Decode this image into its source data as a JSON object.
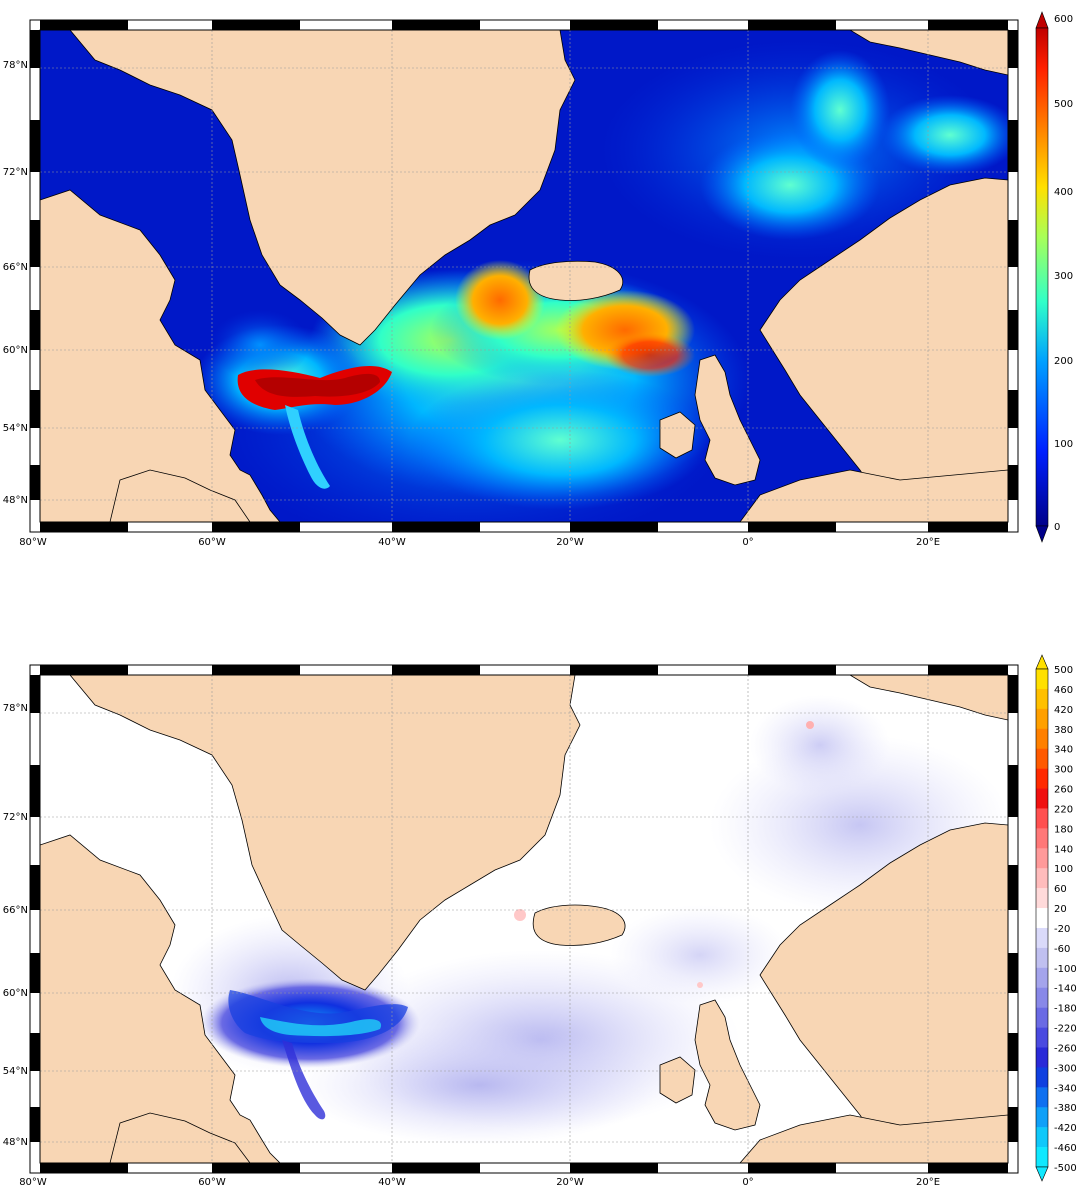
{
  "colors": {
    "land": "#f8d6b4",
    "coast": "#000000",
    "frame_dark": "#000000",
    "frame_light": "#ffffff",
    "grid": "#9a9a9a",
    "ocean_top_base": "#0016c8",
    "ocean_bottom_base": "#ffffff"
  },
  "maps": [
    {
      "id": "top",
      "lat_labels": [
        "78°N",
        "72°N",
        "66°N",
        "60°N",
        "54°N",
        "48°N"
      ],
      "lon_labels": [
        "80°W",
        "60°W",
        "40°W",
        "20°W",
        "0°",
        "20°E"
      ],
      "colorbar": {
        "ticks": [
          "600",
          "500",
          "400",
          "300",
          "200",
          "100",
          "0"
        ],
        "colors": [
          "#00008a",
          "#0000c8",
          "#0020ff",
          "#0050ff",
          "#0080ff",
          "#00b0ff",
          "#00e0f0",
          "#30ffc8",
          "#70ff90",
          "#a8ff58",
          "#e0ff20",
          "#ffe000",
          "#ffb000",
          "#ff7800",
          "#ff4000",
          "#e00000",
          "#b00000"
        ]
      }
    },
    {
      "id": "bottom",
      "lat_labels": [
        "78°N",
        "72°N",
        "66°N",
        "60°N",
        "54°N",
        "48°N"
      ],
      "lon_labels": [
        "80°W",
        "60°W",
        "40°W",
        "20°W",
        "0°",
        "20°E"
      ],
      "colorbar": {
        "ticks": [
          "500",
          "460",
          "420",
          "380",
          "340",
          "300",
          "260",
          "220",
          "180",
          "140",
          "100",
          "60",
          "20",
          "-20",
          "-60",
          "-100",
          "-140",
          "-180",
          "-220",
          "-260",
          "-300",
          "-340",
          "-380",
          "-420",
          "-460",
          "-500"
        ],
        "colors": [
          "#ffe000",
          "#ffc000",
          "#ffa000",
          "#ff8000",
          "#ff5a00",
          "#ff2a00",
          "#f01010",
          "#ff5050",
          "#ff7878",
          "#ff9a9a",
          "#ffbcbc",
          "#ffdada",
          "#ffffff",
          "#dadafa",
          "#c0c0f0",
          "#a4a4ec",
          "#8888e8",
          "#6a6ae4",
          "#4a4ae0",
          "#2a2ad8",
          "#1040e0",
          "#1070f0",
          "#10a0f8",
          "#10c8fa",
          "#10e8ff"
        ]
      }
    }
  ]
}
